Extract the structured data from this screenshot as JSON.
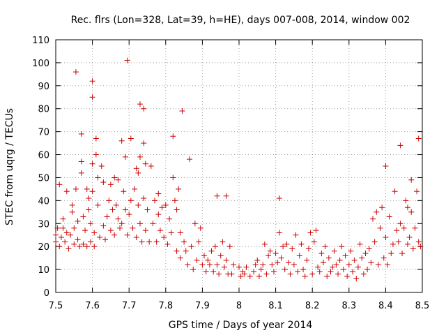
{
  "chart_data": {
    "type": "scatter",
    "title": "Rec. flrs (Lon=328, Lat=39, h=HE), days 007-008, 2014, window 002",
    "xlabel": "GPS time / Days of year 2014",
    "ylabel": "STEC from uqrg / TECUs",
    "xlim": [
      7.5,
      8.5
    ],
    "ylim": [
      0,
      110
    ],
    "x_ticks": [
      "7.5",
      "7.6",
      "7.7",
      "7.8",
      "7.9",
      "8",
      "8.1",
      "8.2",
      "8.3",
      "8.4",
      "8.5"
    ],
    "y_ticks": [
      "0",
      "10",
      "20",
      "30",
      "40",
      "50",
      "60",
      "70",
      "80",
      "90",
      "100",
      "110"
    ],
    "grid": true,
    "marker": "+",
    "marker_color": "#cc0000",
    "series": [
      {
        "name": "STEC",
        "points": [
          [
            7.5,
            22
          ],
          [
            7.5,
            25
          ],
          [
            7.505,
            28
          ],
          [
            7.51,
            20
          ],
          [
            7.51,
            47
          ],
          [
            7.515,
            24
          ],
          [
            7.52,
            32
          ],
          [
            7.52,
            28
          ],
          [
            7.525,
            22
          ],
          [
            7.53,
            44
          ],
          [
            7.53,
            26
          ],
          [
            7.535,
            19
          ],
          [
            7.54,
            25
          ],
          [
            7.545,
            38
          ],
          [
            7.545,
            35
          ],
          [
            7.55,
            21
          ],
          [
            7.55,
            28
          ],
          [
            7.555,
            96
          ],
          [
            7.555,
            45
          ],
          [
            7.56,
            31
          ],
          [
            7.56,
            23
          ],
          [
            7.565,
            20
          ],
          [
            7.57,
            57
          ],
          [
            7.57,
            69
          ],
          [
            7.57,
            52
          ],
          [
            7.575,
            33
          ],
          [
            7.575,
            21
          ],
          [
            7.58,
            27
          ],
          [
            7.585,
            20
          ],
          [
            7.585,
            45
          ],
          [
            7.59,
            41
          ],
          [
            7.59,
            36
          ],
          [
            7.595,
            22
          ],
          [
            7.595,
            30
          ],
          [
            7.6,
            92
          ],
          [
            7.6,
            85
          ],
          [
            7.6,
            56
          ],
          [
            7.6,
            44
          ],
          [
            7.605,
            20
          ],
          [
            7.605,
            26
          ],
          [
            7.61,
            67
          ],
          [
            7.61,
            60
          ],
          [
            7.615,
            50
          ],
          [
            7.615,
            38
          ],
          [
            7.62,
            24
          ],
          [
            7.625,
            55
          ],
          [
            7.63,
            48
          ],
          [
            7.63,
            29
          ],
          [
            7.635,
            23
          ],
          [
            7.64,
            33
          ],
          [
            7.645,
            40
          ],
          [
            7.65,
            47
          ],
          [
            7.65,
            27
          ],
          [
            7.655,
            36
          ],
          [
            7.66,
            50
          ],
          [
            7.66,
            25
          ],
          [
            7.665,
            38
          ],
          [
            7.67,
            32
          ],
          [
            7.67,
            49
          ],
          [
            7.675,
            28
          ],
          [
            7.68,
            66
          ],
          [
            7.68,
            30
          ],
          [
            7.685,
            44
          ],
          [
            7.69,
            59
          ],
          [
            7.69,
            36
          ],
          [
            7.695,
            101
          ],
          [
            7.695,
            25
          ],
          [
            7.7,
            34
          ],
          [
            7.705,
            67
          ],
          [
            7.705,
            40
          ],
          [
            7.71,
            28
          ],
          [
            7.715,
            45
          ],
          [
            7.72,
            54
          ],
          [
            7.72,
            24
          ],
          [
            7.725,
            52
          ],
          [
            7.725,
            38
          ],
          [
            7.73,
            82
          ],
          [
            7.73,
            59
          ],
          [
            7.73,
            30
          ],
          [
            7.735,
            22
          ],
          [
            7.74,
            65
          ],
          [
            7.74,
            80
          ],
          [
            7.74,
            41
          ],
          [
            7.745,
            56
          ],
          [
            7.745,
            27
          ],
          [
            7.75,
            36
          ],
          [
            7.755,
            22
          ],
          [
            7.76,
            55
          ],
          [
            7.765,
            30
          ],
          [
            7.77,
            40
          ],
          [
            7.775,
            22
          ],
          [
            7.78,
            34
          ],
          [
            7.78,
            43
          ],
          [
            7.785,
            27
          ],
          [
            7.79,
            37
          ],
          [
            7.795,
            24
          ],
          [
            7.8,
            38
          ],
          [
            7.805,
            21
          ],
          [
            7.81,
            32
          ],
          [
            7.815,
            26
          ],
          [
            7.82,
            68
          ],
          [
            7.82,
            50
          ],
          [
            7.825,
            40
          ],
          [
            7.83,
            18
          ],
          [
            7.83,
            36
          ],
          [
            7.835,
            45
          ],
          [
            7.84,
            15
          ],
          [
            7.84,
            26
          ],
          [
            7.845,
            79
          ],
          [
            7.85,
            22
          ],
          [
            7.855,
            18
          ],
          [
            7.86,
            12
          ],
          [
            7.865,
            58
          ],
          [
            7.87,
            20
          ],
          [
            7.875,
            10
          ],
          [
            7.88,
            30
          ],
          [
            7.885,
            14
          ],
          [
            7.89,
            22
          ],
          [
            7.895,
            28
          ],
          [
            7.9,
            12
          ],
          [
            7.905,
            16
          ],
          [
            7.91,
            9
          ],
          [
            7.915,
            14
          ],
          [
            7.92,
            12
          ],
          [
            7.925,
            18
          ],
          [
            7.93,
            9
          ],
          [
            7.935,
            20
          ],
          [
            7.94,
            42
          ],
          [
            7.94,
            12
          ],
          [
            7.945,
            8
          ],
          [
            7.95,
            16
          ],
          [
            7.955,
            22
          ],
          [
            7.96,
            11
          ],
          [
            7.965,
            42
          ],
          [
            7.965,
            14
          ],
          [
            7.97,
            8
          ],
          [
            7.975,
            20
          ],
          [
            7.98,
            8
          ],
          [
            7.985,
            12
          ],
          [
            8.0,
            11
          ],
          [
            8.005,
            7
          ],
          [
            8.01,
            9
          ],
          [
            8.015,
            8
          ],
          [
            8.02,
            11
          ],
          [
            8.03,
            7
          ],
          [
            8.04,
            9
          ],
          [
            8.045,
            12
          ],
          [
            8.05,
            14
          ],
          [
            8.055,
            7
          ],
          [
            8.06,
            10
          ],
          [
            8.065,
            12
          ],
          [
            8.07,
            21
          ],
          [
            8.075,
            8
          ],
          [
            8.08,
            16
          ],
          [
            8.085,
            18
          ],
          [
            8.09,
            12
          ],
          [
            8.095,
            9
          ],
          [
            8.1,
            17
          ],
          [
            8.105,
            13
          ],
          [
            8.11,
            41
          ],
          [
            8.11,
            26
          ],
          [
            8.115,
            15
          ],
          [
            8.12,
            20
          ],
          [
            8.125,
            10
          ],
          [
            8.13,
            21
          ],
          [
            8.135,
            13
          ],
          [
            8.14,
            8
          ],
          [
            8.145,
            19
          ],
          [
            8.15,
            12
          ],
          [
            8.155,
            25
          ],
          [
            8.16,
            9
          ],
          [
            8.165,
            16
          ],
          [
            8.17,
            21
          ],
          [
            8.175,
            10
          ],
          [
            8.18,
            7
          ],
          [
            8.185,
            14
          ],
          [
            8.19,
            19
          ],
          [
            8.195,
            26
          ],
          [
            8.2,
            8
          ],
          [
            8.205,
            22
          ],
          [
            8.21,
            27
          ],
          [
            8.215,
            11
          ],
          [
            8.22,
            9
          ],
          [
            8.225,
            17
          ],
          [
            8.23,
            13
          ],
          [
            8.235,
            20
          ],
          [
            8.24,
            7
          ],
          [
            8.245,
            15
          ],
          [
            8.25,
            9
          ],
          [
            8.255,
            11
          ],
          [
            8.26,
            18
          ],
          [
            8.265,
            12
          ],
          [
            8.27,
            8
          ],
          [
            8.275,
            14
          ],
          [
            8.28,
            20
          ],
          [
            8.285,
            10
          ],
          [
            8.29,
            16
          ],
          [
            8.295,
            7
          ],
          [
            8.3,
            12
          ],
          [
            8.305,
            18
          ],
          [
            8.31,
            9
          ],
          [
            8.315,
            14
          ],
          [
            8.32,
            6
          ],
          [
            8.325,
            11
          ],
          [
            8.33,
            21
          ],
          [
            8.335,
            15
          ],
          [
            8.34,
            8
          ],
          [
            8.345,
            17
          ],
          [
            8.35,
            10
          ],
          [
            8.355,
            19
          ],
          [
            8.36,
            13
          ],
          [
            8.365,
            32
          ],
          [
            8.37,
            22
          ],
          [
            8.375,
            35
          ],
          [
            8.38,
            12
          ],
          [
            8.385,
            28
          ],
          [
            8.39,
            37
          ],
          [
            8.395,
            15
          ],
          [
            8.4,
            55
          ],
          [
            8.4,
            24
          ],
          [
            8.405,
            12
          ],
          [
            8.41,
            33
          ],
          [
            8.415,
            17
          ],
          [
            8.42,
            21
          ],
          [
            8.425,
            44
          ],
          [
            8.43,
            27
          ],
          [
            8.435,
            22
          ],
          [
            8.44,
            64
          ],
          [
            8.44,
            30
          ],
          [
            8.445,
            17
          ],
          [
            8.45,
            28
          ],
          [
            8.455,
            40
          ],
          [
            8.46,
            37
          ],
          [
            8.46,
            21
          ],
          [
            8.465,
            24
          ],
          [
            8.47,
            49
          ],
          [
            8.47,
            35
          ],
          [
            8.475,
            19
          ],
          [
            8.48,
            28
          ],
          [
            8.485,
            44
          ],
          [
            8.49,
            67
          ],
          [
            8.49,
            22
          ],
          [
            8.495,
            20
          ]
        ]
      }
    ]
  }
}
